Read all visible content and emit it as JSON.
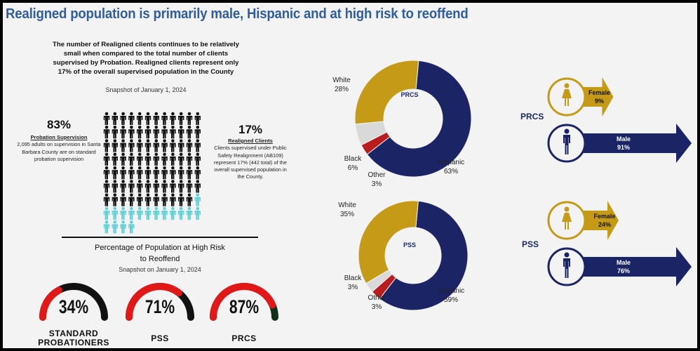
{
  "title": "Realigned population is primarily male, Hispanic and at high risk to reoffend",
  "intro": {
    "text": "The number of Realigned clients continues to be relatively small when compared to the total number of clients supervised by Probation.  Realigned clients represent only 17% of the overall supervised population in the County",
    "snapshot": "Snapshot of January 1, 2024"
  },
  "pictograph": {
    "total_icons": 100,
    "highlighted_icons": 17,
    "colors": {
      "probation": "#111111",
      "realigned": "#5fd0d6"
    },
    "left": {
      "pct": "83%",
      "heading": "Probation Supervision",
      "text": "2,095 adults on supervision in Santa Barbara County are on standard probation supervision"
    },
    "right": {
      "pct": "17%",
      "heading": "Realigned Clients",
      "text": "Clients supervised under Public Safety Realignment (AB109) represent 17% (442 total)  of the overall supervised population in the County."
    }
  },
  "risk": {
    "heading": "Percentage of Population at High Risk to Reoffend",
    "snapshot": "Snapshot on January 1, 2024",
    "gauges": [
      {
        "label": "STANDARD PROBATIONERS",
        "value": 34,
        "text": "34%"
      },
      {
        "label": "PSS",
        "value": 71,
        "text": "71%"
      },
      {
        "label": "PRCS",
        "value": 87,
        "text": "87%"
      }
    ]
  },
  "chart_data": [
    {
      "type": "pie",
      "variant": "donut",
      "title": "PRCS",
      "categories": [
        "Hispanic",
        "Other",
        "Black",
        "White"
      ],
      "values": [
        63,
        3,
        6,
        28
      ],
      "labels": [
        "Hispanic\n63%",
        "Other\n3%",
        "Black\n6%",
        "White\n28%"
      ],
      "colors": [
        "#1b2464",
        "#b81c1c",
        "#d9d9d9",
        "#c49a16"
      ]
    },
    {
      "type": "pie",
      "variant": "donut",
      "title": "PSS",
      "categories": [
        "Hispanic",
        "Other",
        "Black",
        "White"
      ],
      "values": [
        59,
        3,
        3,
        35
      ],
      "labels": [
        "Hispanic\n59%",
        "Other\n3%",
        "Black\n3%",
        "White\n35%"
      ],
      "colors": [
        "#1b2464",
        "#b81c1c",
        "#d9d9d9",
        "#c49a16"
      ]
    },
    {
      "type": "gauge",
      "categories": [
        "STANDARD PROBATIONERS",
        "PSS",
        "PRCS"
      ],
      "values": [
        34,
        71,
        87
      ],
      "ylim": [
        0,
        100
      ]
    }
  ],
  "gender": [
    {
      "group": "PRCS",
      "female": {
        "label": "Female",
        "pct": "9%",
        "value": 9
      },
      "male": {
        "label": "Male",
        "pct": "91%",
        "value": 91
      }
    },
    {
      "group": "PSS",
      "female": {
        "label": "Female",
        "pct": "24%",
        "value": 24
      },
      "male": {
        "label": "Male",
        "pct": "76%",
        "value": 76
      }
    }
  ],
  "colors": {
    "female": "#c49a16",
    "male": "#1b2464",
    "title": "#2f5d9e",
    "gauge_fill": "#e01818",
    "gauge_track": "#111111"
  }
}
